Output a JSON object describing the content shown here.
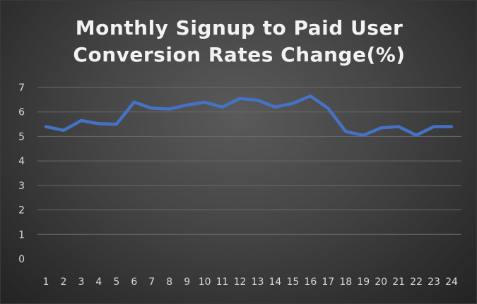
{
  "chart_data": {
    "type": "line",
    "title_line1": "Monthly Signup to Paid User",
    "title_line2": "Conversion Rates Change(%)",
    "xlabel": "",
    "ylabel": "",
    "x": [
      "1",
      "2",
      "3",
      "4",
      "5",
      "6",
      "7",
      "8",
      "9",
      "10",
      "11",
      "12",
      "13",
      "14",
      "15",
      "16",
      "17",
      "18",
      "19",
      "20",
      "21",
      "22",
      "23",
      "24"
    ],
    "series": [
      {
        "values": [
          5.4,
          5.25,
          5.65,
          5.52,
          5.5,
          6.4,
          6.15,
          6.12,
          6.28,
          6.4,
          6.2,
          6.55,
          6.48,
          6.2,
          6.35,
          6.65,
          6.15,
          5.2,
          5.05,
          5.35,
          5.4,
          5.05,
          5.4,
          5.4
        ],
        "color": "#4472c4"
      }
    ],
    "yticks": [
      "0",
      "1",
      "2",
      "3",
      "4",
      "5",
      "6",
      "7"
    ],
    "ylim": [
      0,
      7
    ],
    "grid": true,
    "legend": "none"
  }
}
